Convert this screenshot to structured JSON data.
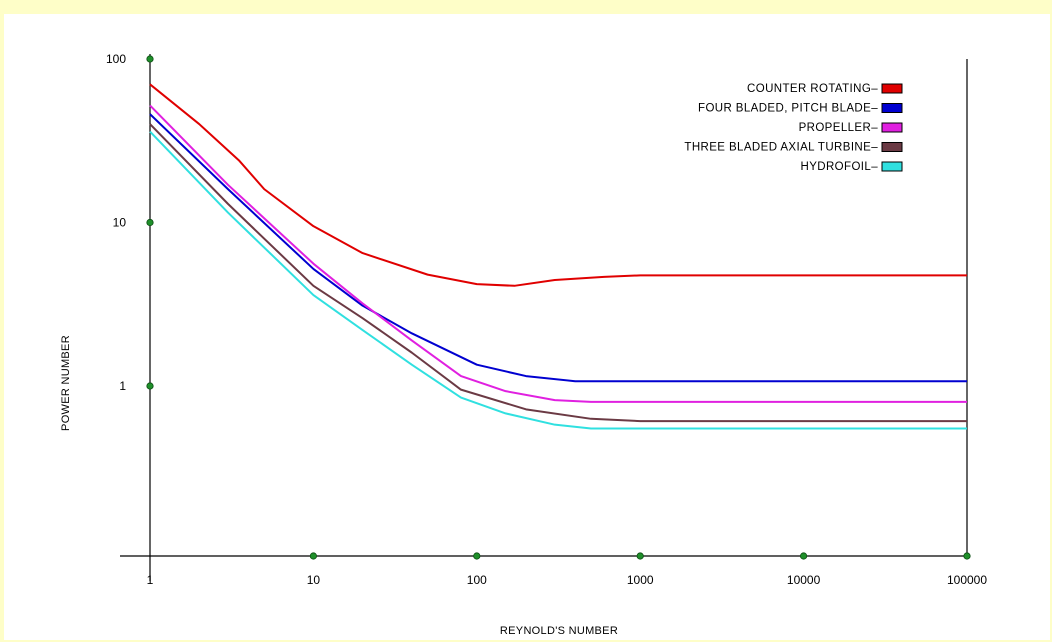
{
  "chart_data": {
    "type": "line",
    "xlabel": "REYNOLD'S NUMBER",
    "ylabel": "POWER NUMBER",
    "x_scale": "log",
    "y_scale": "log",
    "xlim": [
      1,
      100000
    ],
    "ylim": [
      0.1,
      100
    ],
    "x_ticks": [
      {
        "value": 1,
        "label": "1"
      },
      {
        "value": 10,
        "label": "10"
      },
      {
        "value": 100,
        "label": "100"
      },
      {
        "value": 1000,
        "label": "1000"
      },
      {
        "value": 10000,
        "label": "10000"
      },
      {
        "value": 100000,
        "label": "100000"
      }
    ],
    "y_ticks": [
      {
        "value": 1,
        "label": "1"
      },
      {
        "value": 10,
        "label": "10"
      },
      {
        "value": 100,
        "label": "100"
      }
    ],
    "marker_color": "#1f8f2a",
    "legend_position": "top-right",
    "series": [
      {
        "name": "COUNTER ROTATING",
        "legend_label": "COUNTER ROTATING–",
        "color": "#e00000",
        "points": [
          [
            1,
            70
          ],
          [
            2,
            40
          ],
          [
            3.5,
            24
          ],
          [
            5,
            16
          ],
          [
            10,
            9.5
          ],
          [
            20,
            6.5
          ],
          [
            50,
            4.8
          ],
          [
            100,
            4.2
          ],
          [
            170,
            4.1
          ],
          [
            300,
            4.45
          ],
          [
            600,
            4.65
          ],
          [
            1000,
            4.75
          ],
          [
            3000,
            4.75
          ],
          [
            100000,
            4.75
          ]
        ]
      },
      {
        "name": "FOUR BLADED, PITCH BLADE",
        "legend_label": "FOUR BLADED, PITCH BLADE–",
        "color": "#0000d0",
        "points": [
          [
            1,
            46
          ],
          [
            3,
            16
          ],
          [
            10,
            5.2
          ],
          [
            20,
            3.1
          ],
          [
            40,
            2.1
          ],
          [
            100,
            1.35
          ],
          [
            200,
            1.15
          ],
          [
            400,
            1.07
          ],
          [
            1000,
            1.07
          ],
          [
            100000,
            1.07
          ]
        ]
      },
      {
        "name": "PROPELLER",
        "legend_label": "PROPELLER–",
        "color": "#e020e0",
        "points": [
          [
            1,
            52
          ],
          [
            3,
            17
          ],
          [
            10,
            5.6
          ],
          [
            20,
            3.2
          ],
          [
            40,
            1.9
          ],
          [
            80,
            1.15
          ],
          [
            150,
            0.93
          ],
          [
            300,
            0.82
          ],
          [
            500,
            0.8
          ],
          [
            1000,
            0.8
          ],
          [
            100000,
            0.8
          ]
        ]
      },
      {
        "name": "THREE BLADED AXIAL TURBINE",
        "legend_label": "THREE BLADED AXIAL TURBINE–",
        "color": "#6b3a44",
        "points": [
          [
            1,
            40
          ],
          [
            3,
            13
          ],
          [
            10,
            4.1
          ],
          [
            20,
            2.6
          ],
          [
            40,
            1.6
          ],
          [
            80,
            0.95
          ],
          [
            200,
            0.72
          ],
          [
            500,
            0.63
          ],
          [
            1000,
            0.61
          ],
          [
            100000,
            0.61
          ]
        ]
      },
      {
        "name": "HYDROFOIL",
        "legend_label": "HYDROFOIL–",
        "color": "#30e0e0",
        "points": [
          [
            1,
            36
          ],
          [
            3,
            11.5
          ],
          [
            10,
            3.6
          ],
          [
            20,
            2.2
          ],
          [
            40,
            1.35
          ],
          [
            80,
            0.85
          ],
          [
            150,
            0.68
          ],
          [
            300,
            0.58
          ],
          [
            500,
            0.55
          ],
          [
            1000,
            0.55
          ],
          [
            100000,
            0.55
          ]
        ]
      }
    ]
  }
}
